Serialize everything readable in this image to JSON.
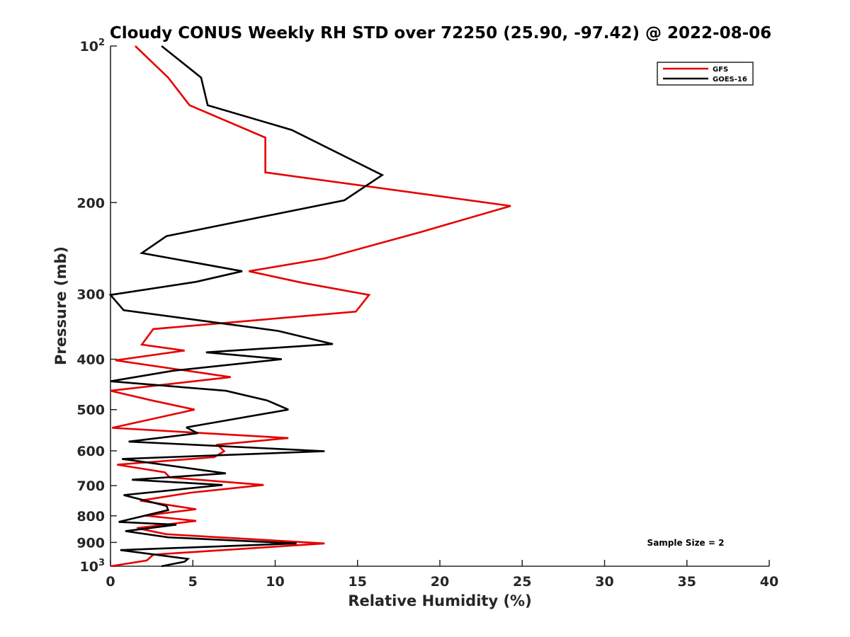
{
  "chart_data": {
    "type": "line",
    "title": "Cloudy CONUS Weekly RH STD over 72250 (25.90, -97.42) @ 2022-08-06",
    "xlabel": "Relative Humidity (%)",
    "ylabel": "Pressure (mb)",
    "xlim": [
      0,
      40
    ],
    "ylim": [
      100,
      1000
    ],
    "y_scale": "log",
    "y_reversed": true,
    "grid": false,
    "legend_position": "top-right",
    "x_ticks": [
      "0",
      "5",
      "10",
      "15",
      "20",
      "25",
      "30",
      "35",
      "40"
    ],
    "x_tick_values": [
      0,
      5,
      10,
      15,
      20,
      25,
      30,
      35,
      40
    ],
    "y_tick_values": [
      100,
      200,
      300,
      400,
      500,
      600,
      700,
      800,
      900,
      1000
    ],
    "y_ticks": [
      {
        "base": "10",
        "exp": "2"
      },
      {
        "base": "200",
        "exp": ""
      },
      {
        "base": "300",
        "exp": ""
      },
      {
        "base": "400",
        "exp": ""
      },
      {
        "base": "500",
        "exp": ""
      },
      {
        "base": "600",
        "exp": ""
      },
      {
        "base": "700",
        "exp": ""
      },
      {
        "base": "800",
        "exp": ""
      },
      {
        "base": "900",
        "exp": ""
      },
      {
        "base": "10",
        "exp": "3"
      }
    ],
    "annotation": "Sample Size = 2",
    "series": [
      {
        "name": "GFS",
        "color": "#e60000",
        "points": [
          [
            1.5,
            100
          ],
          [
            3.5,
            115
          ],
          [
            4.8,
            130
          ],
          [
            9.4,
            150
          ],
          [
            9.4,
            175
          ],
          [
            24.3,
            203
          ],
          [
            18.8,
            228
          ],
          [
            13,
            256
          ],
          [
            8.4,
            271
          ],
          [
            11.6,
            285
          ],
          [
            15.7,
            301
          ],
          [
            14.9,
            324
          ],
          [
            2.6,
            350
          ],
          [
            1.9,
            375
          ],
          [
            4.5,
            385
          ],
          [
            0.3,
            402
          ],
          [
            7.3,
            433
          ],
          [
            0,
            460
          ],
          [
            2.5,
            480
          ],
          [
            5.1,
            500
          ],
          [
            0.1,
            542
          ],
          [
            10.8,
            567
          ],
          [
            6.5,
            584
          ],
          [
            6.9,
            601
          ],
          [
            6.3,
            617
          ],
          [
            0.4,
            638
          ],
          [
            3.3,
            660
          ],
          [
            3.6,
            675
          ],
          [
            9.3,
            698
          ],
          [
            4.9,
            722
          ],
          [
            1.8,
            748
          ],
          [
            5.2,
            777
          ],
          [
            2.1,
            799
          ],
          [
            5.2,
            818
          ],
          [
            1.6,
            845
          ],
          [
            3.4,
            868
          ],
          [
            13,
            904
          ],
          [
            2.6,
            950
          ],
          [
            2.2,
            975
          ],
          [
            0,
            1000
          ]
        ]
      },
      {
        "name": "GOES-16",
        "color": "#000000",
        "points": [
          [
            3.1,
            100
          ],
          [
            5.5,
            115
          ],
          [
            5.9,
            130
          ],
          [
            11,
            145
          ],
          [
            16.5,
            177
          ],
          [
            14.2,
            198
          ],
          [
            3.4,
            232
          ],
          [
            1.9,
            250
          ],
          [
            8,
            271
          ],
          [
            5.2,
            284
          ],
          [
            0,
            301
          ],
          [
            0.8,
            322
          ],
          [
            10.2,
            353
          ],
          [
            13.5,
            374
          ],
          [
            5.8,
            388
          ],
          [
            10.4,
            400
          ],
          [
            3.8,
            421
          ],
          [
            0,
            441
          ],
          [
            7,
            460
          ],
          [
            9.5,
            480
          ],
          [
            10.8,
            500
          ],
          [
            4.6,
            541
          ],
          [
            5.3,
            555
          ],
          [
            1.1,
            576
          ],
          [
            13,
            601
          ],
          [
            0.7,
            622
          ],
          [
            7,
            663
          ],
          [
            1.3,
            682
          ],
          [
            6.8,
            698
          ],
          [
            0.8,
            730
          ],
          [
            3.4,
            766
          ],
          [
            3.5,
            780
          ],
          [
            0.5,
            822
          ],
          [
            4,
            832
          ],
          [
            0.9,
            856
          ],
          [
            3.5,
            880
          ],
          [
            11.3,
            904
          ],
          [
            0.6,
            931
          ],
          [
            4.7,
            968
          ],
          [
            4.5,
            980
          ],
          [
            3.1,
            1000
          ]
        ]
      }
    ]
  }
}
